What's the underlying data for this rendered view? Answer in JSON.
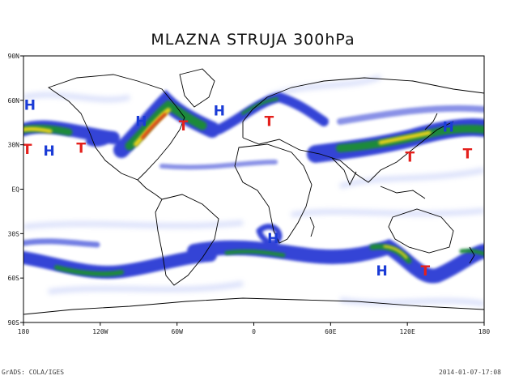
{
  "title": "MLAZNA STRUJA 300hPa",
  "footer": {
    "left": "GrADS: COLA/IGES",
    "right": "2014-01-07-17:08"
  },
  "axes": {
    "lon_range": [
      -180,
      180
    ],
    "lat_range": [
      -90,
      90
    ],
    "lon_ticks": [
      {
        "value": -180,
        "label": "180"
      },
      {
        "value": -120,
        "label": "120W"
      },
      {
        "value": -60,
        "label": "60W"
      },
      {
        "value": 0,
        "label": "0"
      },
      {
        "value": 60,
        "label": "60E"
      },
      {
        "value": 120,
        "label": "120E"
      },
      {
        "value": 180,
        "label": "180"
      }
    ],
    "lat_ticks": [
      {
        "value": 90,
        "label": "90N"
      },
      {
        "value": 60,
        "label": "60N"
      },
      {
        "value": 30,
        "label": "30N"
      },
      {
        "value": 0,
        "label": "EQ"
      },
      {
        "value": -30,
        "label": "30S"
      },
      {
        "value": -60,
        "label": "60S"
      },
      {
        "value": -90,
        "label": "90S"
      }
    ]
  },
  "markers": [
    {
      "label": "H",
      "lon": -175,
      "lat": 57
    },
    {
      "label": "H",
      "lon": -160,
      "lat": 26
    },
    {
      "label": "T",
      "lon": -177,
      "lat": 27
    },
    {
      "label": "T",
      "lon": -135,
      "lat": 28
    },
    {
      "label": "H",
      "lon": -88,
      "lat": 46
    },
    {
      "label": "T",
      "lon": -55,
      "lat": 43
    },
    {
      "label": "H",
      "lon": -27,
      "lat": 53
    },
    {
      "label": "T",
      "lon": 12,
      "lat": 46
    },
    {
      "label": "H",
      "lon": 152,
      "lat": 42
    },
    {
      "label": "T",
      "lon": 122,
      "lat": 22
    },
    {
      "label": "T",
      "lon": 167,
      "lat": 24
    },
    {
      "label": "H",
      "lon": 15,
      "lat": -33
    },
    {
      "label": "H",
      "lon": 100,
      "lat": -55
    },
    {
      "label": "T",
      "lon": 134,
      "lat": -55
    }
  ],
  "legend_colors": {
    "weak": "#2b3bd4",
    "medium": "#1f8a3a",
    "strong": "#e8d21a",
    "peak": "#d9301a",
    "H": "#1a3bd6",
    "T": "#e4201c"
  }
}
